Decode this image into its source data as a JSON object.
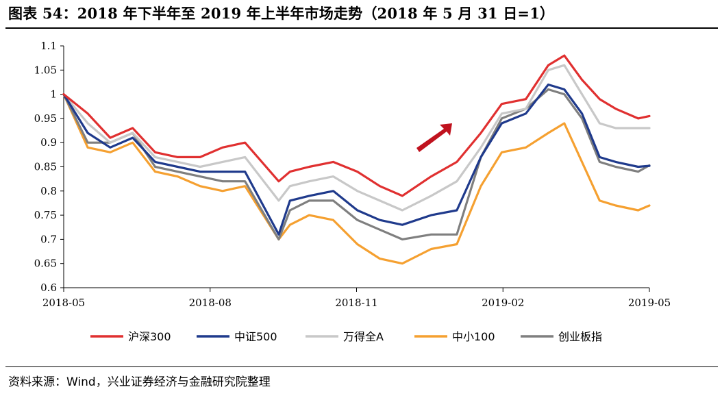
{
  "title": "图表 54：2018 年下半年至 2019 年上半年市场走势（2018 年 5 月 31 日=1）",
  "source": "资料来源：Wind，兴业证券经济与金融研究院整理",
  "chart_data": {
    "type": "line",
    "x_ticks": [
      "2018-05",
      "2018-08",
      "2018-11",
      "2019-02",
      "2019-05"
    ],
    "x": [
      "2018-05-31",
      "2018-06-15",
      "2018-06-29",
      "2018-07-13",
      "2018-07-27",
      "2018-08-10",
      "2018-08-24",
      "2018-09-07",
      "2018-09-21",
      "2018-10-12",
      "2018-10-19",
      "2018-10-31",
      "2018-11-15",
      "2018-11-30",
      "2018-12-14",
      "2018-12-28",
      "2019-01-15",
      "2019-01-31",
      "2019-02-15",
      "2019-02-28",
      "2019-03-15",
      "2019-03-29",
      "2019-04-08",
      "2019-04-19",
      "2019-04-30",
      "2019-05-10",
      "2019-05-24",
      "2019-05-31"
    ],
    "ylim": [
      0.6,
      1.1
    ],
    "y_ticks": [
      "0.6",
      "0.65",
      "0.7",
      "0.75",
      "0.8",
      "0.85",
      "0.9",
      "0.95",
      "1",
      "1.05",
      "1.1"
    ],
    "series": [
      {
        "name": "沪深300",
        "color": "#e03030",
        "values": [
          1.0,
          0.96,
          0.91,
          0.93,
          0.88,
          0.87,
          0.87,
          0.89,
          0.9,
          0.82,
          0.84,
          0.85,
          0.86,
          0.84,
          0.81,
          0.79,
          0.83,
          0.86,
          0.92,
          0.98,
          0.99,
          1.06,
          1.08,
          1.03,
          0.99,
          0.97,
          0.95,
          0.955
        ]
      },
      {
        "name": "中证500",
        "color": "#1f3a8c",
        "values": [
          1.0,
          0.92,
          0.89,
          0.91,
          0.86,
          0.85,
          0.84,
          0.84,
          0.84,
          0.71,
          0.78,
          0.79,
          0.8,
          0.76,
          0.74,
          0.73,
          0.75,
          0.76,
          0.87,
          0.94,
          0.96,
          1.02,
          1.01,
          0.96,
          0.87,
          0.86,
          0.85,
          0.852
        ]
      },
      {
        "name": "万得全A",
        "color": "#c8c8c8",
        "values": [
          1.0,
          0.94,
          0.9,
          0.92,
          0.87,
          0.86,
          0.85,
          0.86,
          0.87,
          0.78,
          0.81,
          0.82,
          0.83,
          0.8,
          0.78,
          0.76,
          0.79,
          0.82,
          0.89,
          0.96,
          0.97,
          1.05,
          1.06,
          1.0,
          0.94,
          0.93,
          0.93,
          0.93
        ]
      },
      {
        "name": "中小100",
        "color": "#f5a030",
        "values": [
          1.0,
          0.89,
          0.88,
          0.9,
          0.84,
          0.83,
          0.81,
          0.8,
          0.81,
          0.7,
          0.73,
          0.75,
          0.74,
          0.69,
          0.66,
          0.65,
          0.68,
          0.69,
          0.81,
          0.88,
          0.89,
          0.92,
          0.94,
          0.86,
          0.78,
          0.77,
          0.76,
          0.77
        ]
      },
      {
        "name": "创业板指",
        "color": "#7f7f7f",
        "values": [
          1.0,
          0.9,
          0.9,
          0.92,
          0.85,
          0.84,
          0.83,
          0.82,
          0.82,
          0.7,
          0.76,
          0.78,
          0.78,
          0.74,
          0.72,
          0.7,
          0.71,
          0.71,
          0.87,
          0.95,
          0.97,
          1.01,
          1.0,
          0.95,
          0.86,
          0.85,
          0.84,
          0.853
        ]
      }
    ],
    "legend_position": "bottom",
    "annotation": "up-arrow"
  }
}
